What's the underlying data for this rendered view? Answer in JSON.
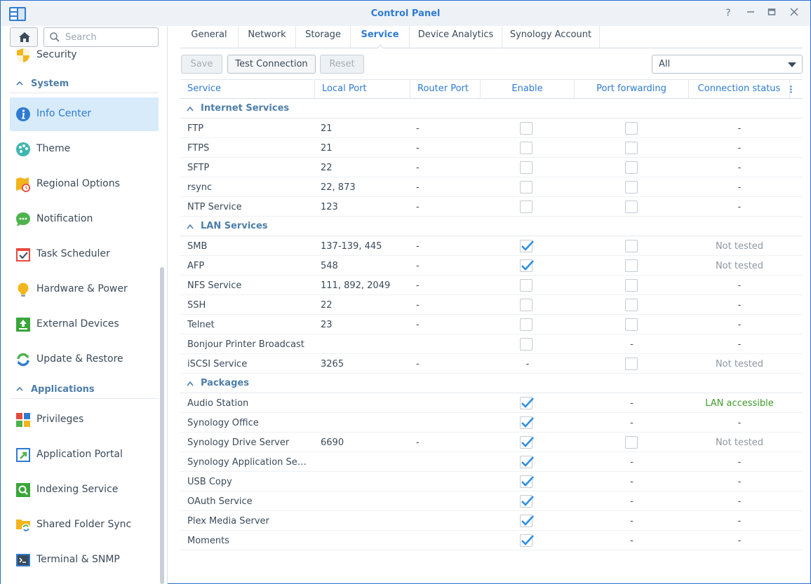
{
  "window": {
    "title": "Control Panel"
  },
  "sidebar": {
    "search_placeholder": "Search",
    "items": [
      {
        "label": "Security",
        "icon": "shield-icon"
      },
      {
        "section": "System"
      },
      {
        "label": "Info Center",
        "icon": "info-icon",
        "active": true
      },
      {
        "label": "Theme",
        "icon": "palette-icon"
      },
      {
        "label": "Regional Options",
        "icon": "clock-map-icon"
      },
      {
        "label": "Notification",
        "icon": "chat-bubble-icon"
      },
      {
        "label": "Task Scheduler",
        "icon": "calendar-check-icon"
      },
      {
        "label": "Hardware & Power",
        "icon": "lightbulb-icon"
      },
      {
        "label": "External Devices",
        "icon": "upload-box-icon"
      },
      {
        "label": "Update & Restore",
        "icon": "refresh-icon"
      },
      {
        "section": "Applications"
      },
      {
        "label": "Privileges",
        "icon": "blocks-icon"
      },
      {
        "label": "Application Portal",
        "icon": "portal-arrow-icon"
      },
      {
        "label": "Indexing Service",
        "icon": "magnifier-box-icon"
      },
      {
        "label": "Shared Folder Sync",
        "icon": "folder-sync-icon"
      },
      {
        "label": "Terminal & SNMP",
        "icon": "terminal-icon"
      }
    ]
  },
  "tabs": [
    "General",
    "Network",
    "Storage",
    "Service",
    "Device Analytics",
    "Synology Account"
  ],
  "active_tab": "Service",
  "toolbar": {
    "save": "Save",
    "test": "Test Connection",
    "reset": "Reset",
    "filter": "All"
  },
  "columns": {
    "service": "Service",
    "local_port": "Local Port",
    "router_port": "Router Port",
    "enable": "Enable",
    "port_forwarding": "Port forwarding",
    "connection_status": "Connection status"
  },
  "groups": [
    {
      "name": "Internet Services",
      "rows": [
        {
          "service": "FTP",
          "local_port": "21",
          "router_port": "-",
          "enable": false,
          "pf": false,
          "status": "-"
        },
        {
          "service": "FTPS",
          "local_port": "21",
          "router_port": "-",
          "enable": false,
          "pf": false,
          "status": "-"
        },
        {
          "service": "SFTP",
          "local_port": "22",
          "router_port": "-",
          "enable": false,
          "pf": false,
          "status": "-"
        },
        {
          "service": "rsync",
          "local_port": "22, 873",
          "router_port": "-",
          "enable": false,
          "pf": false,
          "status": "-"
        },
        {
          "service": "NTP Service",
          "local_port": "123",
          "router_port": "-",
          "enable": false,
          "pf": false,
          "status": "-"
        }
      ]
    },
    {
      "name": "LAN Services",
      "rows": [
        {
          "service": "SMB",
          "local_port": "137-139, 445",
          "router_port": "-",
          "enable": true,
          "pf": false,
          "status": "Not tested"
        },
        {
          "service": "AFP",
          "local_port": "548",
          "router_port": "-",
          "enable": true,
          "pf": false,
          "status": "Not tested"
        },
        {
          "service": "NFS Service",
          "local_port": "111, 892, 2049",
          "router_port": "-",
          "enable": false,
          "pf": false,
          "status": "-"
        },
        {
          "service": "SSH",
          "local_port": "22",
          "router_port": "-",
          "enable": false,
          "pf": false,
          "status": "-"
        },
        {
          "service": "Telnet",
          "local_port": "23",
          "router_port": "-",
          "enable": false,
          "pf": false,
          "status": "-"
        },
        {
          "service": "Bonjour Printer Broadcast",
          "local_port": "",
          "router_port": "",
          "enable": false,
          "pf": "-",
          "status": "-"
        },
        {
          "service": "iSCSI Service",
          "local_port": "3265",
          "router_port": "-",
          "enable": "-",
          "pf": false,
          "status": "Not tested"
        }
      ]
    },
    {
      "name": "Packages",
      "rows": [
        {
          "service": "Audio Station",
          "local_port": "",
          "router_port": "",
          "enable": true,
          "pf": "-",
          "status": "LAN accessible"
        },
        {
          "service": "Synology Office",
          "local_port": "",
          "router_port": "",
          "enable": true,
          "pf": "-",
          "status": "-"
        },
        {
          "service": "Synology Drive Server",
          "local_port": "6690",
          "router_port": "-",
          "enable": true,
          "pf": false,
          "status": "Not tested"
        },
        {
          "service": "Synology Application Servi...",
          "local_port": "",
          "router_port": "",
          "enable": true,
          "pf": "-",
          "status": "-"
        },
        {
          "service": "USB Copy",
          "local_port": "",
          "router_port": "",
          "enable": true,
          "pf": "-",
          "status": "-"
        },
        {
          "service": "OAuth Service",
          "local_port": "",
          "router_port": "",
          "enable": true,
          "pf": "-",
          "status": "-"
        },
        {
          "service": "Plex Media Server",
          "local_port": "",
          "router_port": "",
          "enable": true,
          "pf": "-",
          "status": "-"
        },
        {
          "service": "Moments",
          "local_port": "",
          "router_port": "",
          "enable": true,
          "pf": "-",
          "status": "-"
        }
      ]
    }
  ]
}
